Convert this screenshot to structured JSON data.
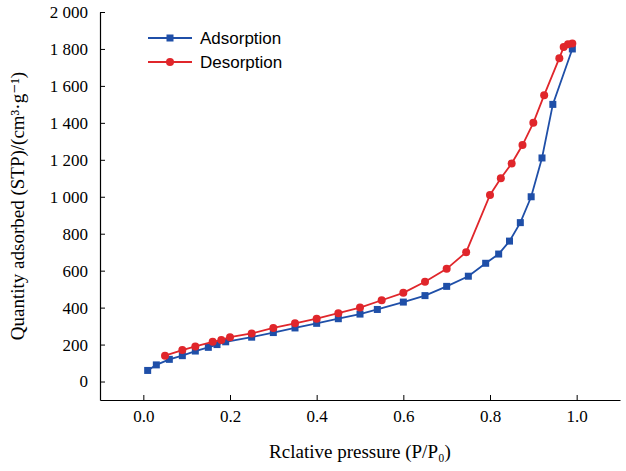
{
  "chart_data": {
    "type": "line",
    "x_label": "Rclative pressure (P/P₀)",
    "y_label": "Quantity adsorbed (STP)/(cm³·g⁻¹)",
    "xlim": [
      -0.1,
      1.1
    ],
    "ylim": [
      -100,
      2000
    ],
    "xticks": [
      {
        "value": 0,
        "label": "0.0"
      },
      {
        "value": 0.2,
        "label": "0.2"
      },
      {
        "value": 0.4,
        "label": "0.4"
      },
      {
        "value": 0.6,
        "label": "0.6"
      },
      {
        "value": 0.8,
        "label": "0.8"
      },
      {
        "value": 1,
        "label": "1.0"
      }
    ],
    "yticks": [
      0,
      200,
      400,
      600,
      800,
      {
        "value": 1000,
        "label": "1 000"
      },
      {
        "value": 1200,
        "label": "1 200"
      },
      {
        "value": 1400,
        "label": "1 400"
      },
      {
        "value": 1600,
        "label": "1 600"
      },
      {
        "value": 1800,
        "label": "1 800"
      },
      {
        "value": 2000,
        "label": "2 000"
      }
    ],
    "grid": false,
    "legend": "upper left",
    "series": [
      {
        "name": "Adsorption",
        "color": "#1f4fa8",
        "marker": "square",
        "line_style": "solid",
        "x": [
          0.01,
          0.03,
          0.06,
          0.09,
          0.12,
          0.15,
          0.17,
          0.19,
          0.25,
          0.3,
          0.35,
          0.4,
          0.45,
          0.5,
          0.54,
          0.6,
          0.65,
          0.7,
          0.75,
          0.79,
          0.82,
          0.845,
          0.87,
          0.895,
          0.92,
          0.945,
          0.99
        ],
        "values": [
          60,
          90,
          120,
          140,
          165,
          185,
          200,
          215,
          240,
          265,
          290,
          315,
          340,
          365,
          390,
          430,
          465,
          515,
          570,
          640,
          690,
          760,
          860,
          1000,
          1210,
          1500,
          1800
        ]
      },
      {
        "name": "Desorption",
        "color": "#e0262b",
        "marker": "circle",
        "line_style": "solid",
        "x": [
          0.99,
          0.98,
          0.97,
          0.96,
          0.925,
          0.9,
          0.875,
          0.85,
          0.825,
          0.8,
          0.745,
          0.7,
          0.65,
          0.6,
          0.55,
          0.5,
          0.45,
          0.4,
          0.35,
          0.3,
          0.25,
          0.2,
          0.18,
          0.16,
          0.12,
          0.09,
          0.05
        ],
        "values": [
          1830,
          1825,
          1810,
          1750,
          1550,
          1400,
          1280,
          1180,
          1100,
          1010,
          700,
          610,
          540,
          480,
          440,
          400,
          370,
          340,
          315,
          290,
          260,
          240,
          225,
          215,
          190,
          170,
          140
        ]
      }
    ]
  }
}
